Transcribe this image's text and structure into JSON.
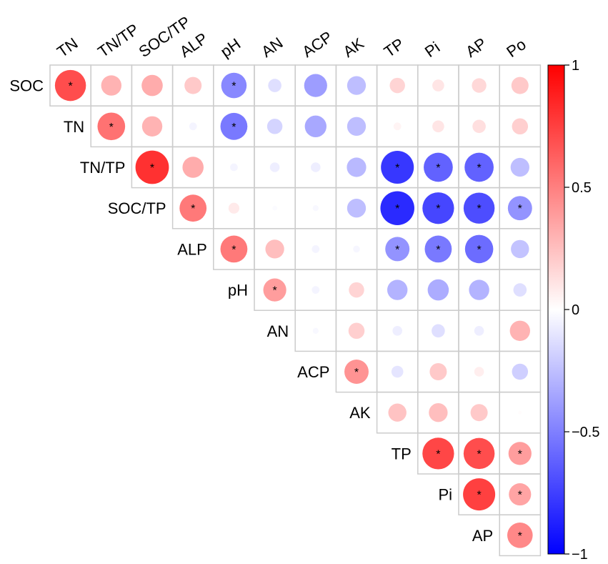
{
  "chart_data": {
    "type": "heatmap",
    "subtype": "correlation-upper-triangle-circles",
    "column_labels": [
      "TN",
      "TN/TP",
      "SOC/TP",
      "ALP",
      "pH",
      "AN",
      "ACP",
      "AK",
      "TP",
      "Pi",
      "AP",
      "Po"
    ],
    "row_labels": [
      "SOC",
      "TN",
      "TN/TP",
      "SOC/TP",
      "ALP",
      "pH",
      "AN",
      "ACP",
      "AK",
      "TP",
      "Pi",
      "AP"
    ],
    "matrix": [
      [
        0.82,
        0.35,
        0.38,
        0.25,
        -0.55,
        -0.15,
        -0.45,
        -0.3,
        0.2,
        0.12,
        0.18,
        0.25
      ],
      [
        null,
        0.65,
        0.35,
        -0.05,
        -0.62,
        -0.2,
        -0.4,
        -0.3,
        0.05,
        0.12,
        0.15,
        0.22
      ],
      [
        null,
        null,
        0.95,
        0.38,
        -0.05,
        -0.08,
        -0.08,
        -0.32,
        -0.92,
        -0.72,
        -0.72,
        -0.3
      ],
      [
        null,
        null,
        null,
        0.62,
        0.1,
        -0.02,
        -0.03,
        -0.3,
        -0.98,
        -0.85,
        -0.82,
        -0.5
      ],
      [
        null,
        null,
        null,
        null,
        0.62,
        0.3,
        -0.05,
        -0.04,
        -0.5,
        -0.62,
        -0.68,
        -0.28
      ],
      [
        null,
        null,
        null,
        null,
        null,
        0.45,
        -0.05,
        0.2,
        -0.35,
        -0.38,
        -0.35,
        -0.15
      ],
      [
        null,
        null,
        null,
        null,
        null,
        null,
        -0.03,
        0.22,
        -0.08,
        -0.15,
        -0.08,
        0.35
      ],
      [
        null,
        null,
        null,
        null,
        null,
        null,
        null,
        0.5,
        -0.12,
        0.25,
        0.08,
        -0.22
      ],
      [
        null,
        null,
        null,
        null,
        null,
        null,
        null,
        null,
        0.28,
        0.3,
        0.25,
        0.01
      ],
      [
        null,
        null,
        null,
        null,
        null,
        null,
        null,
        null,
        null,
        0.85,
        0.82,
        0.45
      ],
      [
        null,
        null,
        null,
        null,
        null,
        null,
        null,
        null,
        null,
        null,
        0.88,
        0.42
      ],
      [
        null,
        null,
        null,
        null,
        null,
        null,
        null,
        null,
        null,
        null,
        null,
        0.55
      ]
    ],
    "significant": [
      [
        0,
        0
      ],
      [
        0,
        4
      ],
      [
        1,
        1
      ],
      [
        1,
        4
      ],
      [
        2,
        2
      ],
      [
        2,
        8
      ],
      [
        2,
        9
      ],
      [
        2,
        10
      ],
      [
        3,
        3
      ],
      [
        3,
        8
      ],
      [
        3,
        9
      ],
      [
        3,
        10
      ],
      [
        3,
        11
      ],
      [
        4,
        4
      ],
      [
        4,
        8
      ],
      [
        4,
        9
      ],
      [
        4,
        10
      ],
      [
        5,
        5
      ],
      [
        7,
        7
      ],
      [
        9,
        9
      ],
      [
        9,
        10
      ],
      [
        9,
        11
      ],
      [
        10,
        10
      ],
      [
        10,
        11
      ],
      [
        11,
        11
      ]
    ],
    "significance_marker": "*",
    "colorbar": {
      "range": [
        -1,
        1
      ],
      "ticks": [
        "1",
        "0.5",
        "0",
        "−0.5",
        "−1"
      ],
      "colors": {
        "high": "#ff0000",
        "mid": "#ffffff",
        "low": "#0000ff"
      }
    }
  }
}
